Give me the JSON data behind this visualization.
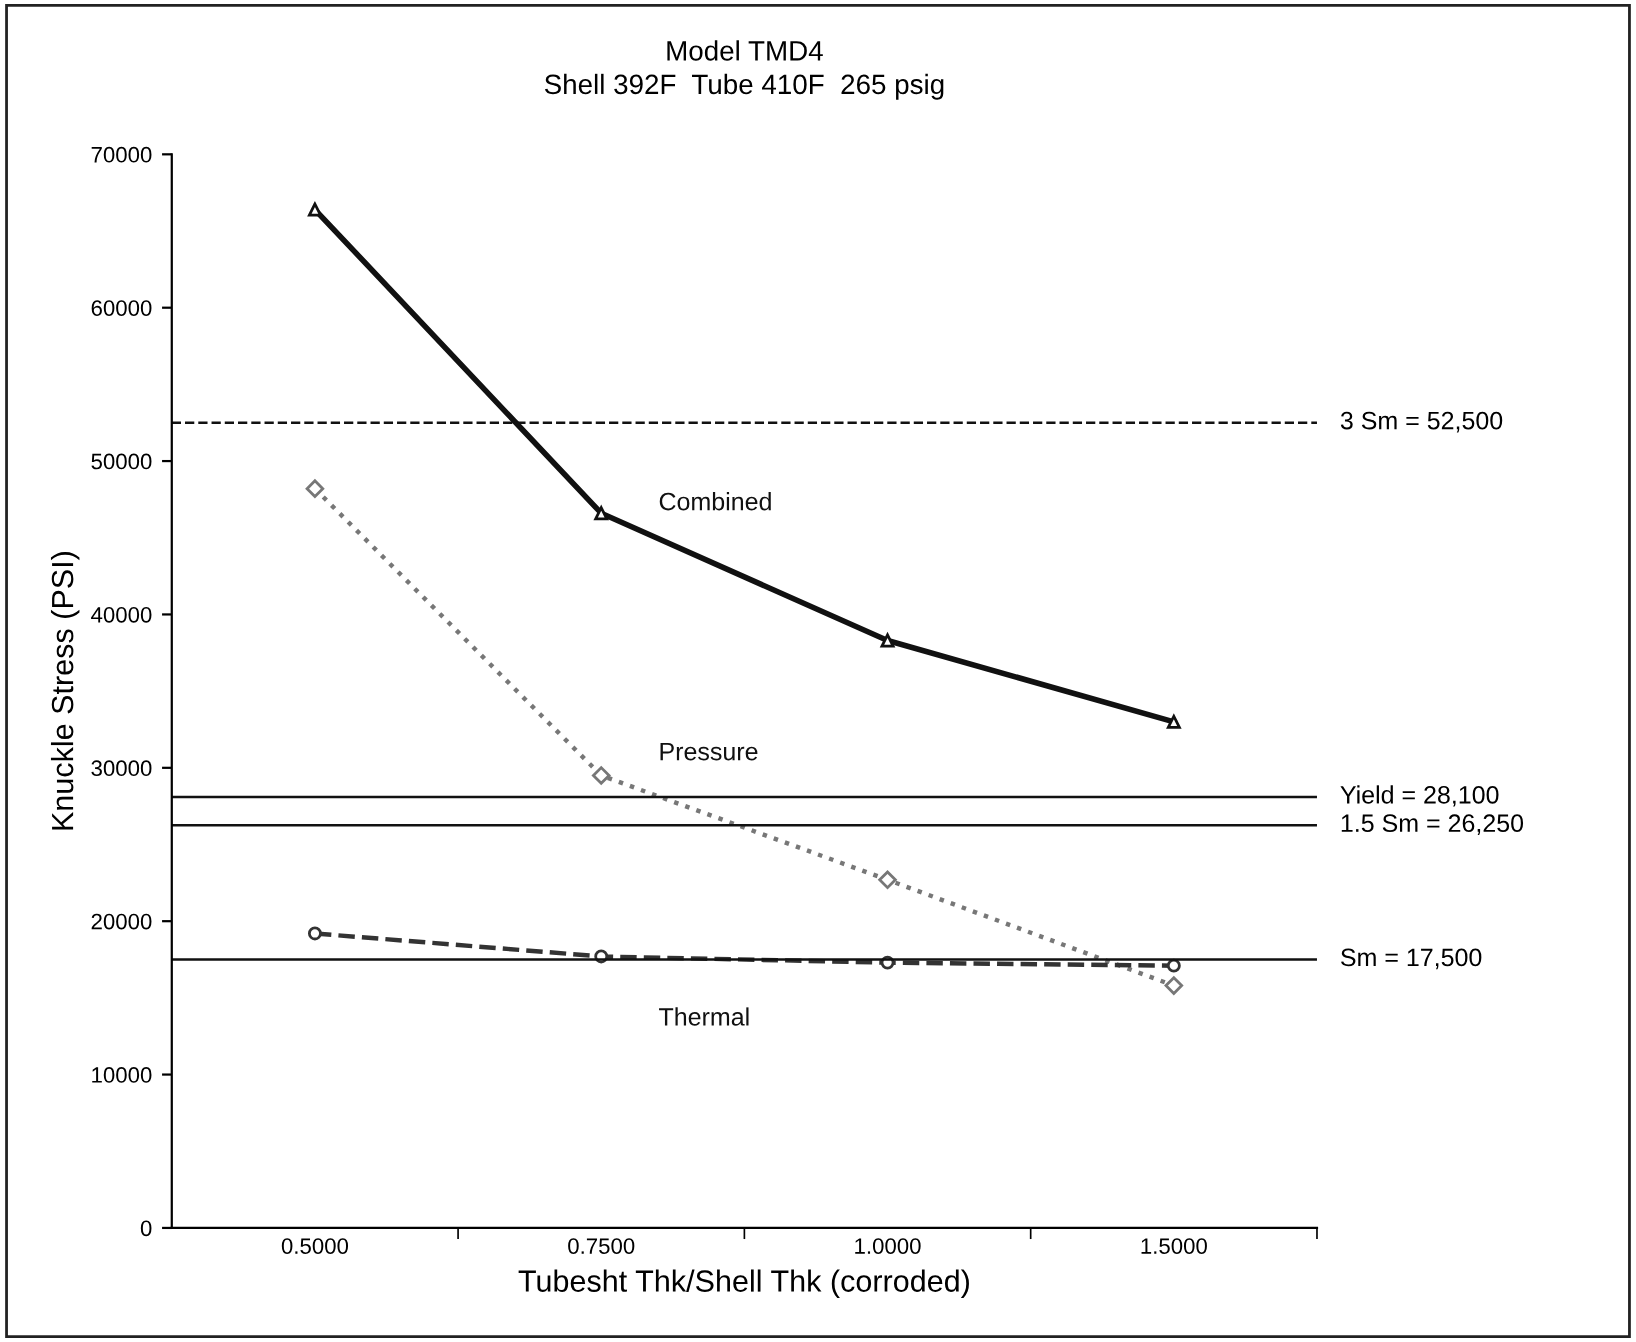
{
  "chart_data": {
    "type": "line",
    "title": "Model TMD4",
    "subtitle": "Shell 392F  Tube 410F  265 psig",
    "xlabel": "Tubesht Thk/Shell Thk (corroded)",
    "ylabel": "Knuckle Stress (PSI)",
    "categories": [
      "0.5000",
      "0.7500",
      "1.0000",
      "1.5000"
    ],
    "series": [
      {
        "name": "Combined",
        "color": "#111111",
        "values": [
          66400,
          46600,
          38300,
          33000
        ],
        "marker": "triangle",
        "line_style": "solid"
      },
      {
        "name": "Pressure",
        "color": "#777777",
        "values": [
          48200,
          29500,
          22700,
          15800
        ],
        "marker": "diamond",
        "line_style": "dotted"
      },
      {
        "name": "Thermal",
        "color": "#333333",
        "values": [
          19200,
          17700,
          17300,
          17100
        ],
        "marker": "circle",
        "line_style": "dashed"
      }
    ],
    "ylim": [
      0,
      70000
    ],
    "yticks": [
      0,
      10000,
      20000,
      30000,
      40000,
      50000,
      60000,
      70000
    ],
    "ref_lines": [
      {
        "axis": "y",
        "value": 52500,
        "label": "3 Sm = 52,500",
        "color": "#111111",
        "line_style": "dashed"
      },
      {
        "axis": "y",
        "value": 28100,
        "label": "Yield = 28,100",
        "color": "#111111",
        "line_style": "solid"
      },
      {
        "axis": "y",
        "value": 26250,
        "label": "1.5 Sm = 26,250",
        "color": "#111111",
        "line_style": "solid"
      },
      {
        "axis": "y",
        "value": 17500,
        "label": "Sm = 17,500",
        "color": "#111111",
        "line_style": "solid"
      }
    ],
    "grid": false,
    "legend": false
  }
}
